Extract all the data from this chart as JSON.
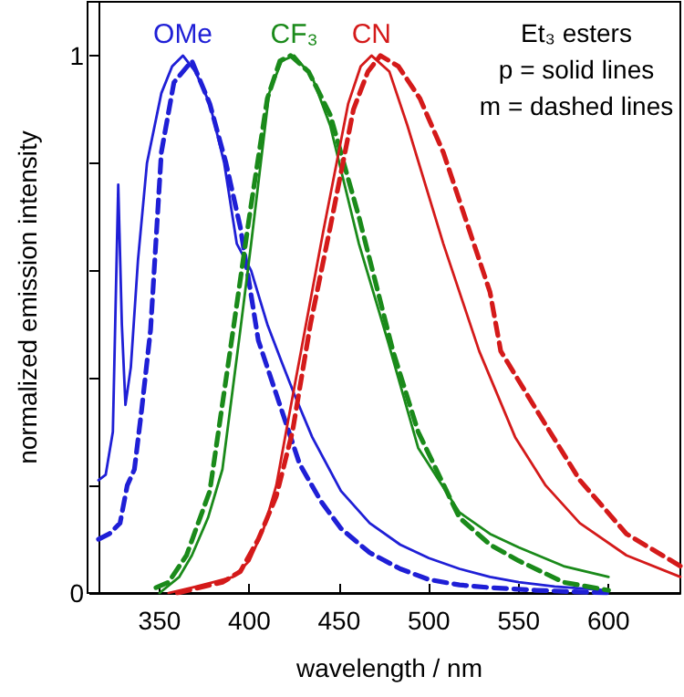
{
  "chart_data": {
    "type": "line",
    "xlabel": "wavelength / nm",
    "ylabel": "normalized emission intensity",
    "xlim": [
      316,
      640
    ],
    "xticks": [
      350,
      400,
      450,
      500,
      550,
      600
    ],
    "ylim": [
      0,
      1.1
    ],
    "yticks": [
      0,
      {
        "value": 0.2,
        "label": null
      },
      {
        "value": 0.4,
        "label": null
      },
      {
        "value": 0.6,
        "label": null
      },
      {
        "value": 0.8,
        "label": null
      },
      1
    ],
    "grid": false,
    "legend": false,
    "marker": "none",
    "annotations": [
      "Et₃ esters",
      "p = solid lines",
      "m = dashed lines"
    ],
    "series": [
      {
        "name": "OMe",
        "color": "#1f1fd6",
        "line_style": "solid",
        "x": [
          316,
          320,
          324,
          327,
          329,
          331,
          334,
          338,
          343,
          351,
          357,
          363,
          370,
          378,
          386,
          393,
          401,
          410,
          418,
          425,
          435,
          451,
          467,
          484,
          500,
          517,
          534,
          550,
          570,
          600
        ],
        "values": [
          0.21,
          0.22,
          0.3,
          0.76,
          0.5,
          0.35,
          0.42,
          0.62,
          0.8,
          0.93,
          0.98,
          1.0,
          0.97,
          0.91,
          0.8,
          0.65,
          0.6,
          0.5,
          0.43,
          0.37,
          0.29,
          0.19,
          0.13,
          0.09,
          0.065,
          0.045,
          0.03,
          0.02,
          0.012,
          0.005
        ]
      },
      {
        "color": "#1f1fd6",
        "line_style": "dashed",
        "x": [
          316,
          322,
          328,
          332,
          336,
          340,
          345,
          351,
          358,
          368,
          378,
          387,
          395,
          405,
          415,
          428,
          440,
          451,
          467,
          484,
          500,
          517,
          534,
          560,
          600
        ],
        "values": [
          0.1,
          0.11,
          0.13,
          0.2,
          0.23,
          0.34,
          0.49,
          0.82,
          0.95,
          0.99,
          0.91,
          0.8,
          0.68,
          0.47,
          0.37,
          0.24,
          0.17,
          0.12,
          0.075,
          0.045,
          0.025,
          0.015,
          0.01,
          0.005,
          0
        ]
      },
      {
        "name": "CF₃",
        "color": "#1a8a1a",
        "line_style": "solid",
        "x": [
          350,
          361,
          368,
          377,
          385,
          395,
          401,
          411,
          418,
          425,
          435,
          445,
          461,
          477,
          494,
          517,
          534,
          550,
          575,
          600
        ],
        "values": [
          0,
          0.03,
          0.07,
          0.14,
          0.23,
          0.49,
          0.65,
          0.93,
          0.99,
          1.0,
          0.96,
          0.87,
          0.65,
          0.47,
          0.27,
          0.15,
          0.11,
          0.085,
          0.05,
          0.03
        ]
      },
      {
        "color": "#1a8a1a",
        "line_style": "dashed",
        "x": [
          348,
          355,
          365,
          378,
          391,
          400,
          410,
          417,
          423,
          433,
          445,
          461,
          480,
          494,
          517,
          534,
          550,
          575,
          600
        ],
        "values": [
          0.01,
          0.02,
          0.07,
          0.19,
          0.49,
          0.7,
          0.92,
          0.99,
          1.0,
          0.97,
          0.89,
          0.7,
          0.45,
          0.3,
          0.14,
          0.09,
          0.06,
          0.02,
          0.005
        ]
      },
      {
        "name": "CN",
        "color": "#d41a1a",
        "line_style": "solid",
        "x": [
          355,
          368,
          380,
          391,
          400,
          408,
          415,
          421,
          431,
          441,
          455,
          462,
          468,
          478,
          488,
          508,
          528,
          548,
          565,
          584,
          610,
          640
        ],
        "values": [
          0,
          0.01,
          0.02,
          0.03,
          0.06,
          0.12,
          0.2,
          0.31,
          0.49,
          0.67,
          0.91,
          0.98,
          1.0,
          0.97,
          0.87,
          0.65,
          0.45,
          0.29,
          0.2,
          0.13,
          0.07,
          0.03
        ]
      },
      {
        "color": "#d41a1a",
        "line_style": "dashed",
        "x": [
          360,
          372,
          385,
          395,
          405,
          415,
          424,
          434,
          445,
          458,
          466,
          473,
          483,
          495,
          508,
          522,
          534,
          540,
          560,
          584,
          610,
          640
        ],
        "values": [
          0,
          0.01,
          0.02,
          0.04,
          0.1,
          0.18,
          0.3,
          0.5,
          0.68,
          0.9,
          0.97,
          1.0,
          0.98,
          0.92,
          0.82,
          0.68,
          0.56,
          0.45,
          0.34,
          0.21,
          0.11,
          0.05
        ]
      }
    ]
  }
}
